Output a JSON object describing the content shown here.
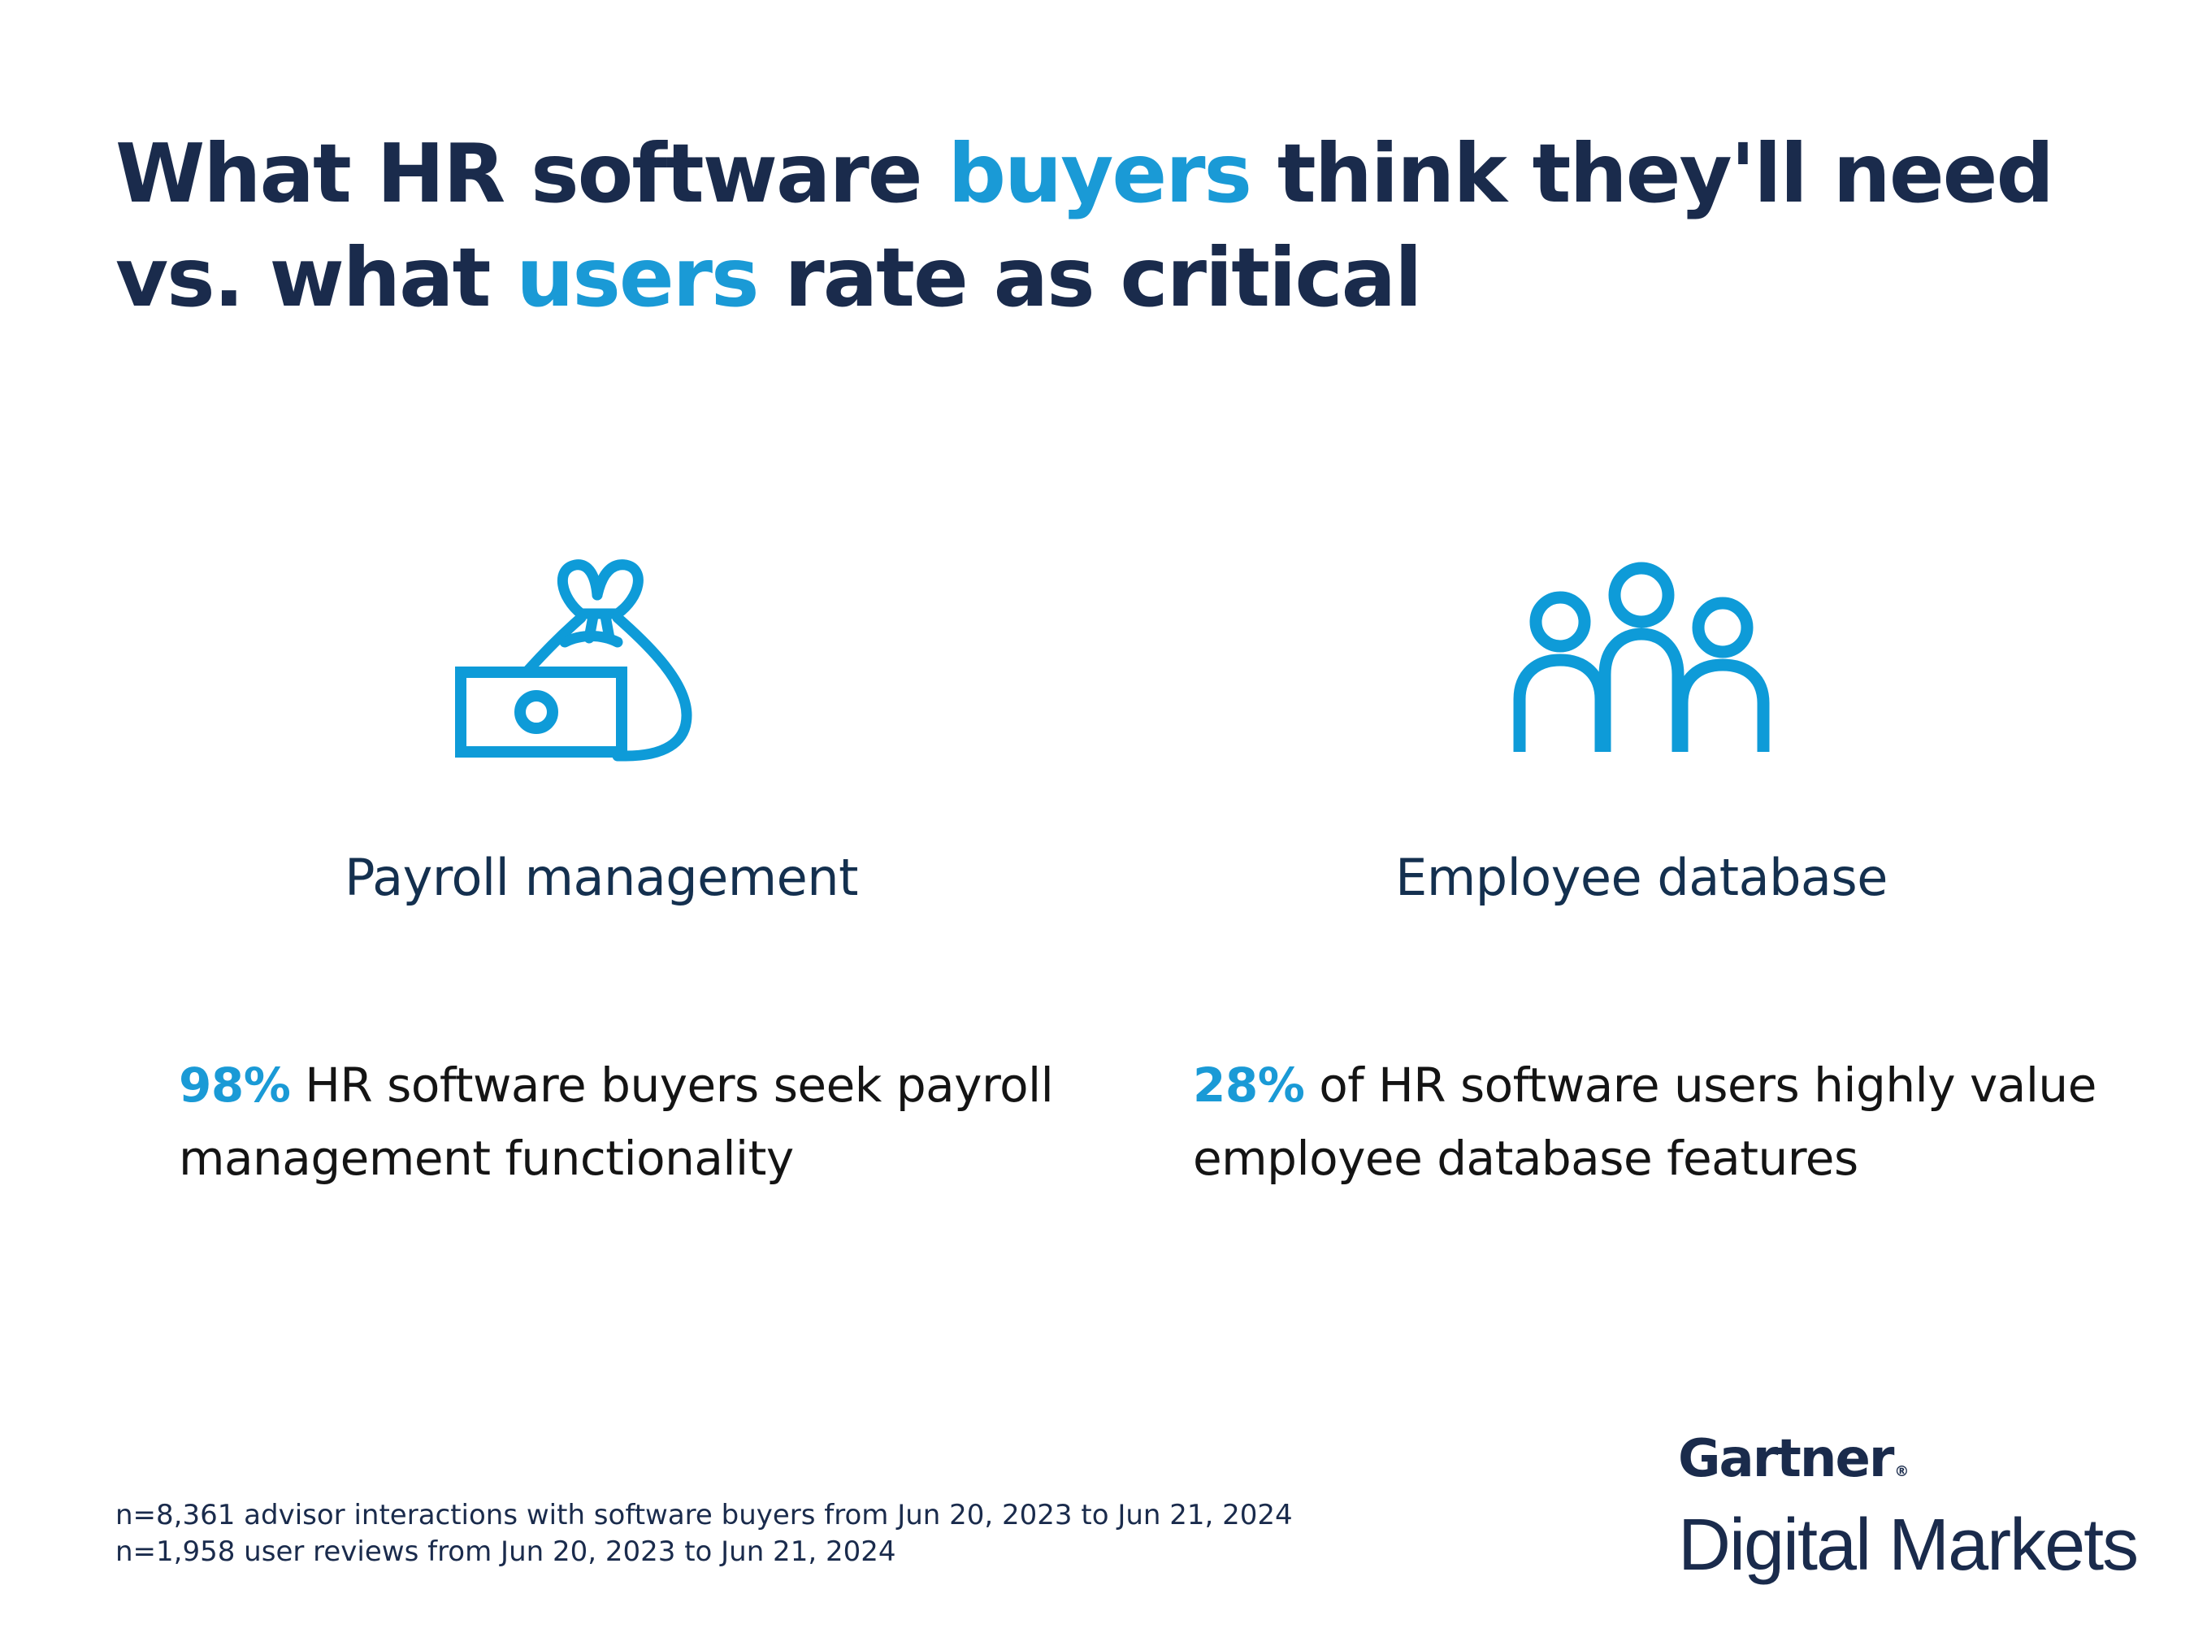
{
  "header": {
    "title_part1": "What HR software ",
    "title_accent1": "buyers",
    "title_part2": " think they'll need vs. what ",
    "title_accent2": "users",
    "title_part3": " rate as critical"
  },
  "features": [
    {
      "icon": "money-bag-icon",
      "title": "Payroll management",
      "stat_value": "98%",
      "stat_text": " HR software buyers seek payroll management functionality"
    },
    {
      "icon": "people-group-icon",
      "title": "Employee database",
      "stat_value": "28%",
      "stat_text": " of HR software users highly value employee database features"
    }
  ],
  "footnotes": [
    "n=8,361 advisor interactions with software buyers from Jun 20, 2023 to Jun 21, 2024",
    "n=1,958 user reviews from Jun 20, 2023 to Jun 21, 2024"
  ],
  "logo": {
    "brand": "Gartner",
    "registered": "®",
    "product": "Digital Markets"
  },
  "colors": {
    "navy": "#1a2b4c",
    "accent": "#1a9ad6",
    "icon": "#0e9bd8",
    "background": "#ffffff"
  }
}
